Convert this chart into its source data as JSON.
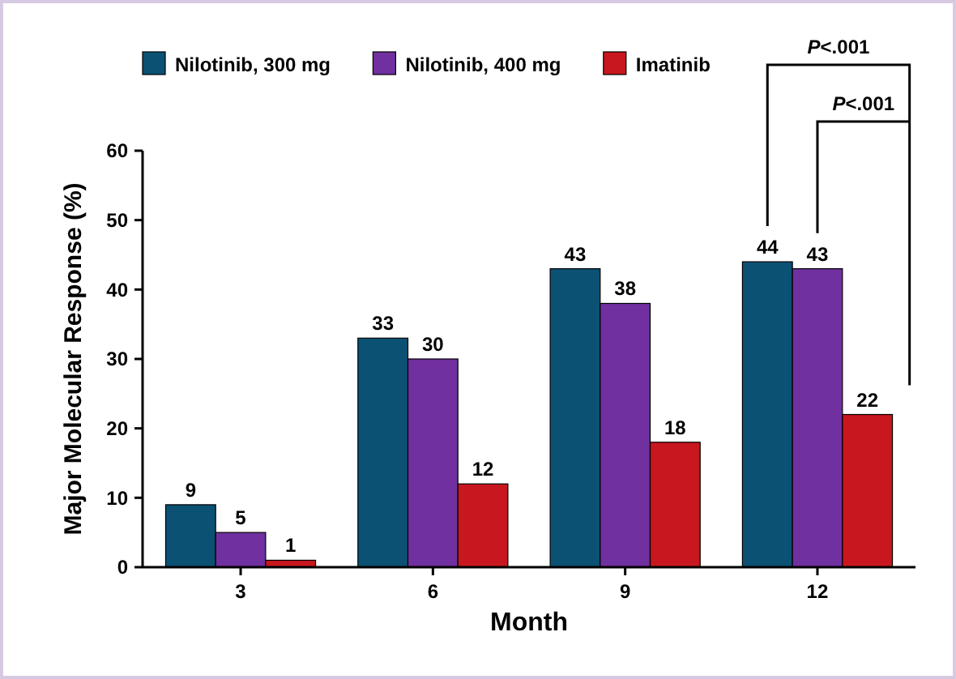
{
  "chart_data": {
    "type": "bar",
    "xlabel": "Month",
    "ylabel": "Major Molecular Response (%)",
    "categories": [
      "3",
      "6",
      "9",
      "12"
    ],
    "series": [
      {
        "name": "Nilotinib, 300 mg",
        "color": "#0b5173",
        "values": [
          9,
          33,
          43,
          44
        ]
      },
      {
        "name": "Nilotinib, 400 mg",
        "color": "#7030a0",
        "values": [
          5,
          30,
          38,
          43
        ]
      },
      {
        "name": "Imatinib",
        "color": "#c8171e",
        "values": [
          1,
          12,
          18,
          22
        ]
      }
    ],
    "ylim": [
      0,
      60
    ],
    "yticks": [
      0,
      10,
      20,
      30,
      40,
      50,
      60
    ],
    "data_labels": true,
    "legend": "top",
    "grid": false,
    "annotations": [
      "P<.001",
      "P<.001"
    ]
  }
}
